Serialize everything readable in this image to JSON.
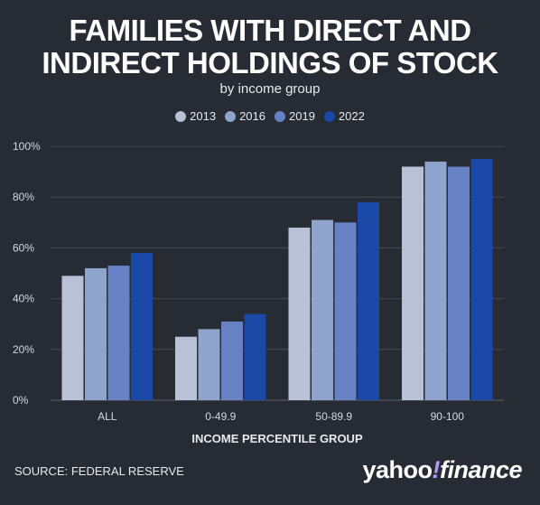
{
  "chart_data": {
    "type": "bar",
    "title": "FAMILIES WITH DIRECT AND\nINDIRECT HOLDINGS OF STOCK",
    "subtitle": "by income group",
    "xlabel": "INCOME PERCENTILE GROUP",
    "ylabel": "",
    "ylim": [
      0,
      100
    ],
    "yticks": [
      "0%",
      "20%",
      "40%",
      "60%",
      "80%",
      "100%"
    ],
    "ytick_values": [
      0,
      20,
      40,
      60,
      80,
      100
    ],
    "categories": [
      "ALL",
      "0-49.9",
      "50-89.9",
      "90-100"
    ],
    "legend_position": "top-center",
    "grid": true,
    "series": [
      {
        "name": "2013",
        "color": "#b8c1d6",
        "values": [
          49,
          25,
          68,
          92
        ]
      },
      {
        "name": "2016",
        "color": "#8fa4cc",
        "values": [
          52,
          28,
          71,
          94
        ]
      },
      {
        "name": "2019",
        "color": "#6681c4",
        "values": [
          53,
          31,
          70,
          92
        ]
      },
      {
        "name": "2022",
        "color": "#1a48a6",
        "values": [
          58,
          34,
          78,
          95
        ]
      }
    ]
  },
  "footer": {
    "source": "SOURCE: FEDERAL RESERVE",
    "brand_text": "yahoo",
    "brand_mark": "!",
    "brand_suffix": "finance"
  }
}
